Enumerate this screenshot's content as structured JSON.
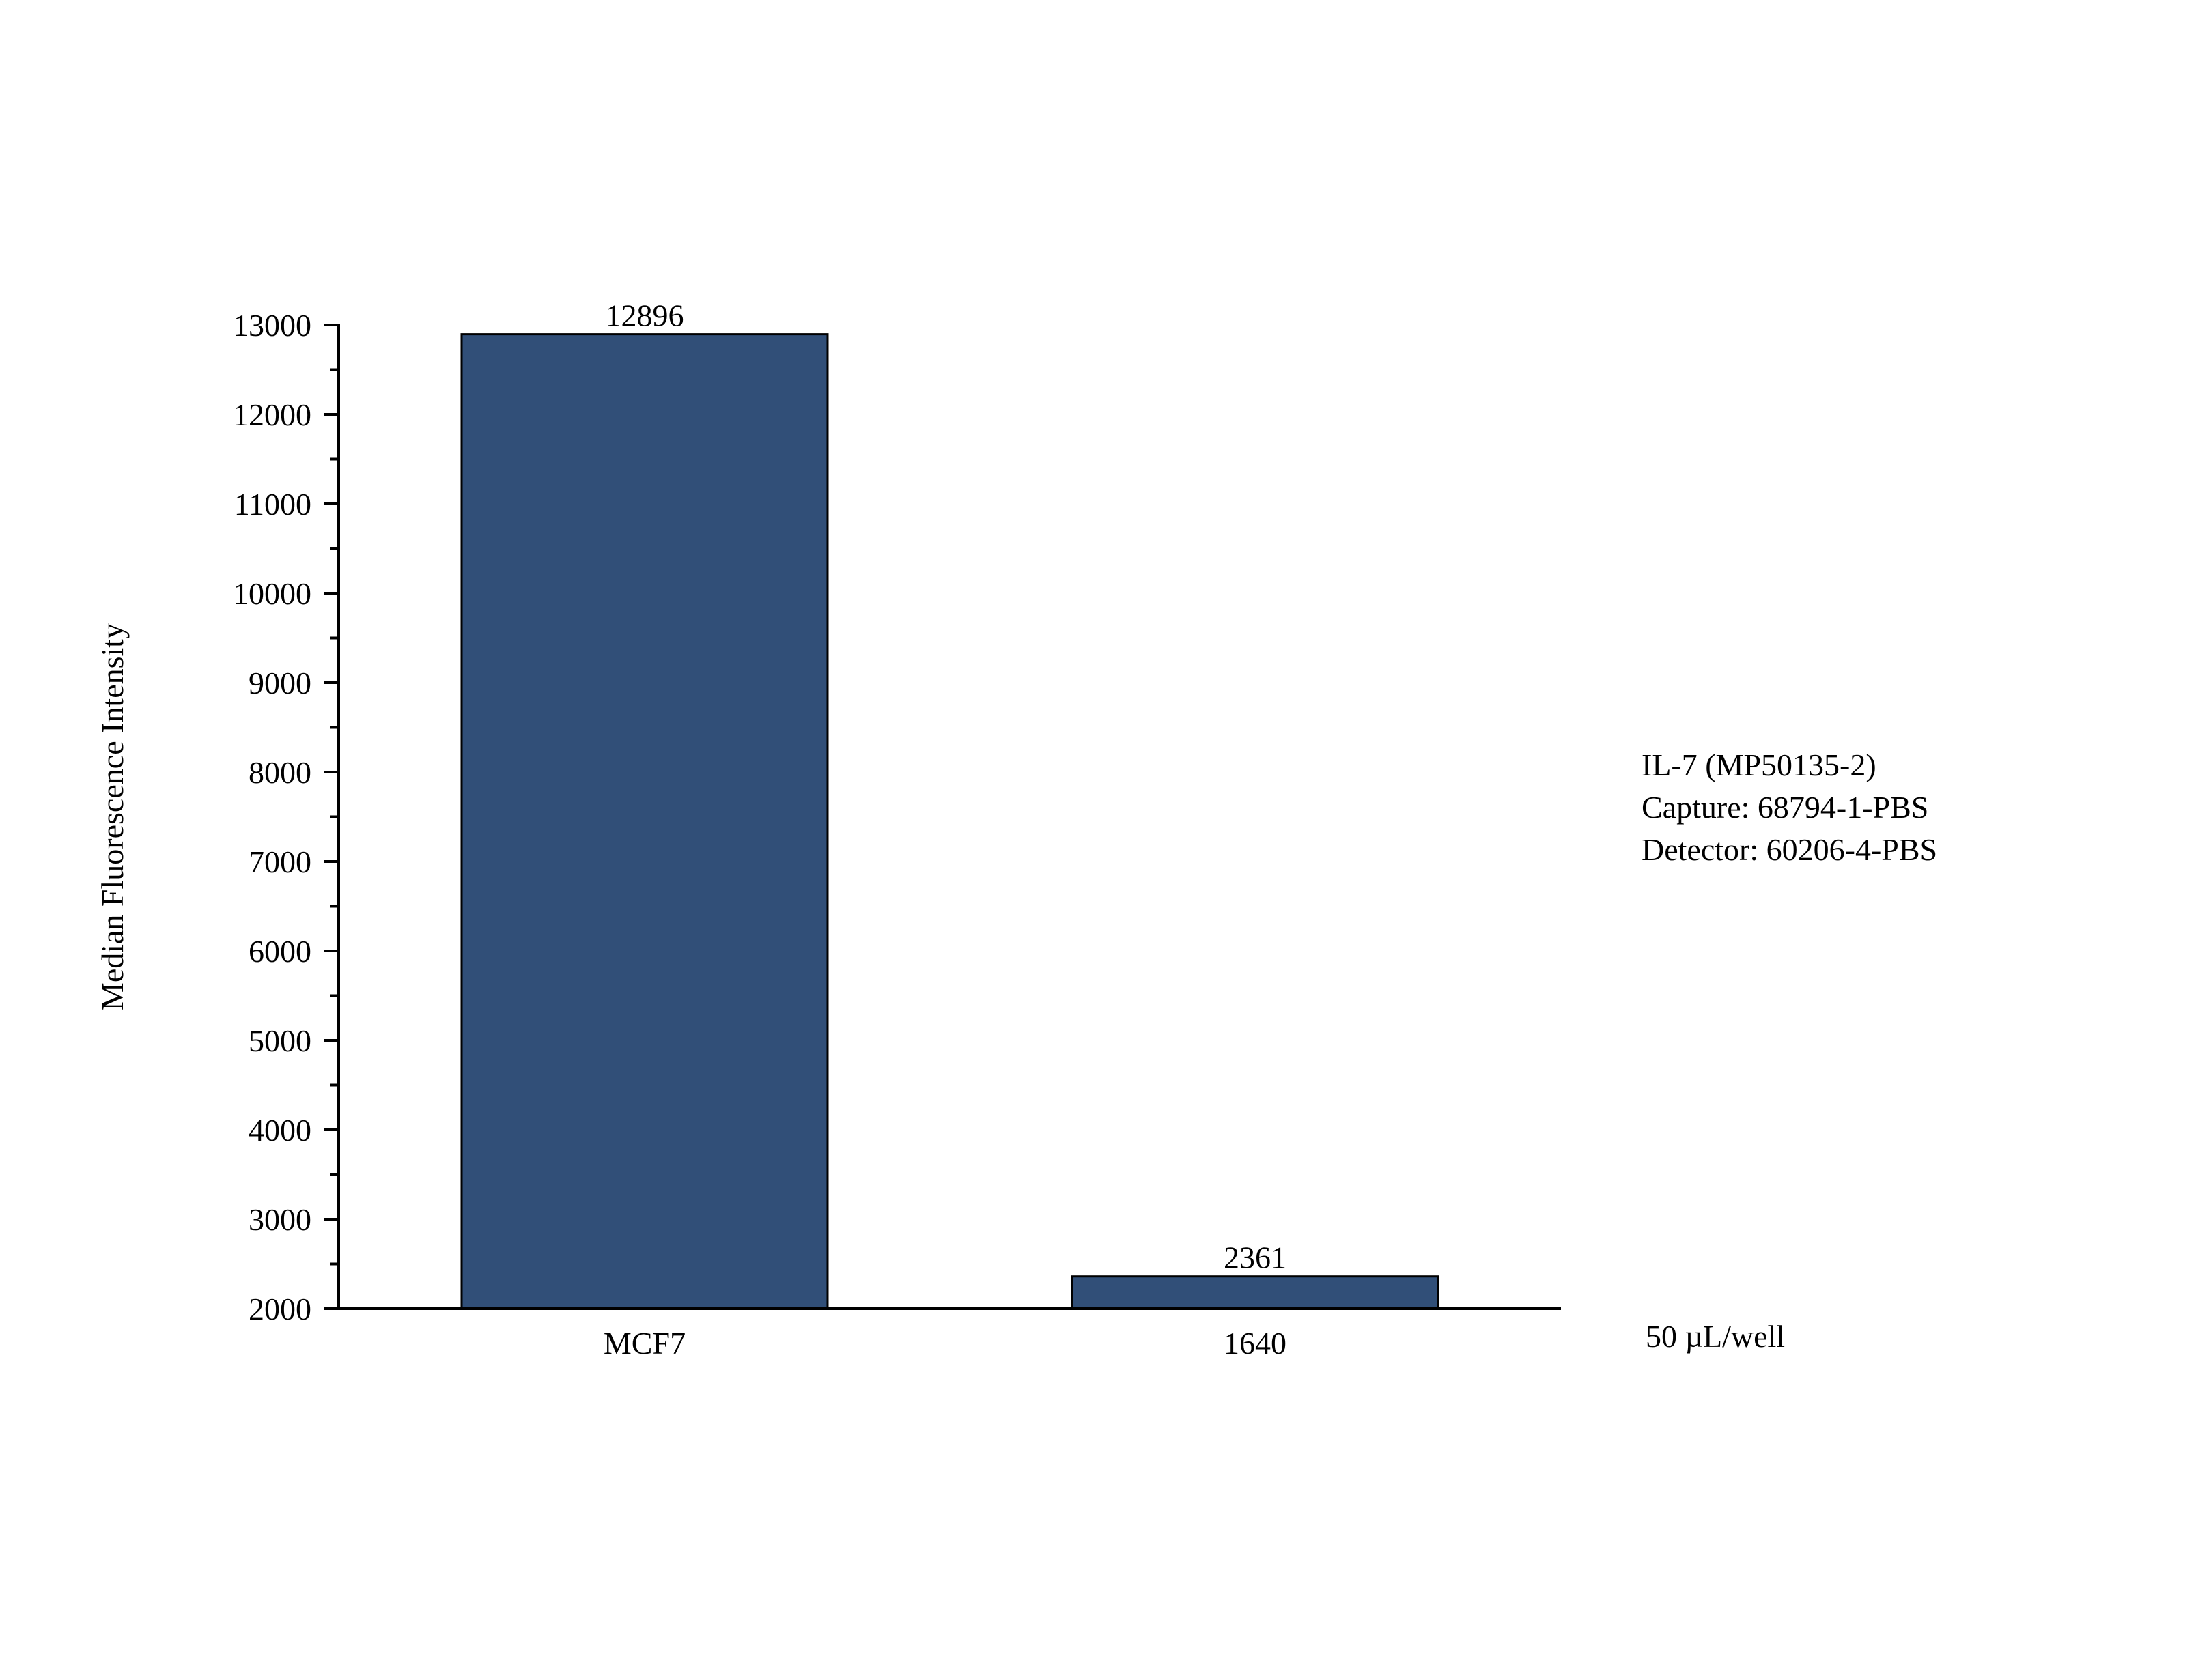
{
  "chart_data": {
    "type": "bar",
    "categories": [
      "MCF7",
      "1640"
    ],
    "values": [
      12896,
      2361
    ],
    "data_labels": [
      "12896",
      "2361"
    ],
    "title": "",
    "xlabel": "",
    "ylabel": "Median Fluorescence Intensity",
    "ylim": [
      2000,
      13000
    ],
    "y_ticks": [
      "2000",
      "3000",
      "4000",
      "5000",
      "6000",
      "7000",
      "8000",
      "9000",
      "10000",
      "11000",
      "12000",
      "13000"
    ],
    "y_minor_step": 500,
    "grid": false,
    "bar_color": "#314F78",
    "bar_edge_color": "#000000"
  },
  "annotations": {
    "lines": [
      "IL-7 (MP50135-2)",
      "Capture: 68794-1-PBS",
      "Detector: 60206-4-PBS"
    ],
    "volume": "50 µL/well"
  }
}
